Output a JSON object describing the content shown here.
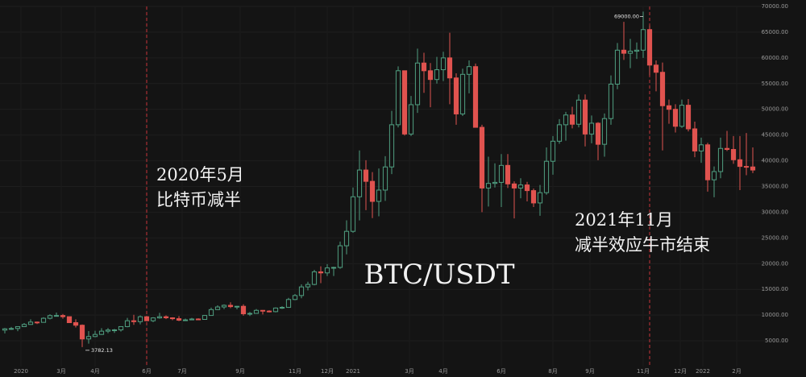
{
  "chart_data": {
    "type": "candlestick",
    "title": "BTC/USDT",
    "up_color": "#4f9e80",
    "down_color": "#e0534f",
    "grid": true,
    "annotations": [
      {
        "lines": [
          "2020年5月",
          "比特币减半"
        ],
        "candle": 22
      },
      {
        "lines": [
          "2021年11月",
          "减半效应牛市结束"
        ],
        "candle": 100
      }
    ],
    "high_label": {
      "value": 69000,
      "label": "69000.00"
    },
    "low_label": {
      "value": 3782.13,
      "label": "3782.13"
    },
    "ylim": [
      0,
      70000
    ],
    "yticks": [
      {
        "value": 5000,
        "label": "5000.00"
      },
      {
        "value": 10000,
        "label": "10000.00"
      },
      {
        "value": 15000,
        "label": "15000.00"
      },
      {
        "value": 20000,
        "label": "20000.00"
      },
      {
        "value": 25000,
        "label": "25000.00"
      },
      {
        "value": 30000,
        "label": "30000.00"
      },
      {
        "value": 35000,
        "label": "35000.00"
      },
      {
        "value": 40000,
        "label": "40000.00"
      },
      {
        "value": 45000,
        "label": "45000.00"
      },
      {
        "value": 50000,
        "label": "50000.00"
      },
      {
        "value": 55000,
        "label": "55000.00"
      },
      {
        "value": 60000,
        "label": "60000.00"
      },
      {
        "value": 65000,
        "label": "65000.00"
      },
      {
        "value": 70000,
        "label": "70000.00"
      }
    ],
    "xlim": [
      -0.75,
      124.25
    ],
    "xticks": [
      {
        "value": 2.5,
        "label": "2020"
      },
      {
        "value": 8.75,
        "label": "3月"
      },
      {
        "value": 14,
        "label": "4月"
      },
      {
        "value": 22,
        "label": "6月"
      },
      {
        "value": 27.5,
        "label": "7月"
      },
      {
        "value": 36.5,
        "label": "9月"
      },
      {
        "value": 45,
        "label": "11月"
      },
      {
        "value": 50,
        "label": "12月"
      },
      {
        "value": 54,
        "label": "2021"
      },
      {
        "value": 62.75,
        "label": "3月"
      },
      {
        "value": 68,
        "label": "4月"
      },
      {
        "value": 77,
        "label": "6月"
      },
      {
        "value": 85,
        "label": "8月"
      },
      {
        "value": 90.75,
        "label": "9月"
      },
      {
        "value": 99,
        "label": "11月"
      },
      {
        "value": 104.75,
        "label": "12月"
      },
      {
        "value": 108.25,
        "label": "2022"
      },
      {
        "value": 113.5,
        "label": "2月"
      }
    ],
    "candles": [
      [
        7080,
        7500,
        6440,
        7330
      ],
      [
        7330,
        7700,
        7130,
        7390
      ],
      [
        7390,
        7500,
        6870,
        7760
      ],
      [
        7760,
        8460,
        7670,
        8180
      ],
      [
        8180,
        9190,
        8130,
        8640
      ],
      [
        8640,
        8750,
        8270,
        8590
      ],
      [
        8590,
        9570,
        8570,
        9380
      ],
      [
        9380,
        10160,
        9170,
        9900
      ],
      [
        9900,
        10500,
        9730,
        9920
      ],
      [
        9920,
        10220,
        9300,
        9690
      ],
      [
        9690,
        9700,
        8450,
        8530
      ],
      [
        8530,
        9190,
        7600,
        8030
      ],
      [
        8030,
        8180,
        3782.13,
        5360
      ],
      [
        5360,
        6900,
        4440,
        5830
      ],
      [
        5830,
        6950,
        5700,
        6240
      ],
      [
        6240,
        7460,
        6150,
        6870
      ],
      [
        6870,
        7470,
        6470,
        7100
      ],
      [
        7100,
        7300,
        6540,
        7130
      ],
      [
        7130,
        7800,
        6800,
        7760
      ],
      [
        7760,
        9460,
        7640,
        8900
      ],
      [
        8900,
        10070,
        8100,
        8720
      ],
      [
        8720,
        9950,
        8200,
        9680
      ],
      [
        9680,
        9850,
        8820,
        8900
      ],
      [
        8900,
        9590,
        8630,
        9450
      ],
      [
        9450,
        10430,
        9290,
        9680
      ],
      [
        9680,
        9950,
        9220,
        9470
      ],
      [
        9470,
        9580,
        9000,
        9300
      ],
      [
        9300,
        9800,
        8830,
        9010
      ],
      [
        9010,
        9320,
        8900,
        9070
      ],
      [
        9070,
        9460,
        9040,
        9240
      ],
      [
        9240,
        9370,
        9000,
        9160
      ],
      [
        9160,
        10000,
        9130,
        9930
      ],
      [
        9930,
        11450,
        9880,
        11070
      ],
      [
        11070,
        11900,
        11000,
        11580
      ],
      [
        11580,
        12080,
        11150,
        11900
      ],
      [
        11900,
        12480,
        11350,
        11650
      ],
      [
        11650,
        11790,
        11120,
        11710
      ],
      [
        11710,
        12090,
        9880,
        10250
      ],
      [
        10250,
        10600,
        9820,
        10330
      ],
      [
        10330,
        11180,
        10260,
        10920
      ],
      [
        10920,
        10990,
        10130,
        10780
      ],
      [
        10780,
        10950,
        10520,
        10670
      ],
      [
        10670,
        11490,
        10530,
        11370
      ],
      [
        11370,
        11720,
        11200,
        11500
      ],
      [
        11500,
        13350,
        11420,
        13030
      ],
      [
        13030,
        14100,
        12900,
        13800
      ],
      [
        13800,
        15970,
        13280,
        15480
      ],
      [
        15480,
        16480,
        14800,
        15960
      ],
      [
        15960,
        18800,
        15800,
        18410
      ],
      [
        18410,
        19480,
        16200,
        18200
      ],
      [
        18200,
        19900,
        17600,
        19170
      ],
      [
        19170,
        19400,
        17600,
        19270
      ],
      [
        19270,
        24300,
        19000,
        23480
      ],
      [
        23480,
        28420,
        21800,
        26280
      ],
      [
        26280,
        34800,
        26000,
        33000
      ],
      [
        33000,
        42000,
        28400,
        38200
      ],
      [
        38200,
        40100,
        30400,
        36000
      ],
      [
        36000,
        37800,
        28850,
        32100
      ],
      [
        32100,
        38500,
        29200,
        34300
      ],
      [
        34300,
        40900,
        32200,
        38800
      ],
      [
        38800,
        49700,
        37400,
        47000
      ],
      [
        47000,
        58350,
        46500,
        57500
      ],
      [
        57500,
        57500,
        44900,
        45200
      ],
      [
        45200,
        52600,
        44800,
        50900
      ],
      [
        50900,
        61800,
        49300,
        59000
      ],
      [
        59000,
        61000,
        53200,
        57500
      ],
      [
        57500,
        59000,
        50400,
        55800
      ],
      [
        55800,
        60200,
        55000,
        57700
      ],
      [
        57700,
        61200,
        55500,
        60000
      ],
      [
        60000,
        64900,
        51000,
        56100
      ],
      [
        56100,
        57000,
        47000,
        49100
      ],
      [
        49100,
        57900,
        48700,
        56800
      ],
      [
        56800,
        59500,
        53100,
        58300
      ],
      [
        58300,
        58900,
        46500,
        46500
      ],
      [
        46500,
        47000,
        30000,
        34700
      ],
      [
        34700,
        40800,
        31100,
        35600
      ],
      [
        35600,
        39500,
        34800,
        35800
      ],
      [
        35800,
        41300,
        31000,
        39100
      ],
      [
        39100,
        41300,
        34700,
        35500
      ],
      [
        35500,
        36000,
        28800,
        34700
      ],
      [
        34700,
        36600,
        32700,
        35300
      ],
      [
        35300,
        35900,
        32100,
        34200
      ],
      [
        34200,
        34600,
        31000,
        31800
      ],
      [
        31800,
        35300,
        29300,
        33800
      ],
      [
        33800,
        42600,
        33400,
        39900
      ],
      [
        39900,
        44800,
        37300,
        43800
      ],
      [
        43800,
        48100,
        43300,
        47000
      ],
      [
        47000,
        49500,
        43900,
        48900
      ],
      [
        48900,
        50500,
        46300,
        47100
      ],
      [
        47100,
        52900,
        46500,
        51800
      ],
      [
        51800,
        52900,
        42800,
        45200
      ],
      [
        45200,
        48800,
        43400,
        47300
      ],
      [
        47300,
        47500,
        40100,
        43200
      ],
      [
        43200,
        49200,
        40800,
        48200
      ],
      [
        48200,
        56600,
        47000,
        54900
      ],
      [
        54900,
        62900,
        53900,
        61500
      ],
      [
        61500,
        67000,
        59600,
        60900
      ],
      [
        60900,
        63700,
        58000,
        61300
      ],
      [
        61300,
        63000,
        59800,
        61500
      ],
      [
        61500,
        69000,
        60000,
        65500
      ],
      [
        65500,
        66300,
        56600,
        58600
      ],
      [
        58600,
        59500,
        53500,
        57200
      ],
      [
        57200,
        59100,
        42000,
        50700
      ],
      [
        50700,
        51900,
        47200,
        50000
      ],
      [
        50000,
        51000,
        45500,
        46700
      ],
      [
        46700,
        51900,
        46400,
        50800
      ],
      [
        50800,
        52000,
        45700,
        46200
      ],
      [
        46200,
        47600,
        40700,
        41900
      ],
      [
        41900,
        44500,
        39600,
        43100
      ],
      [
        43100,
        43500,
        34000,
        36300
      ],
      [
        36300,
        38900,
        32900,
        37900
      ],
      [
        37900,
        44500,
        36600,
        42400
      ],
      [
        42400,
        45800,
        41900,
        42200
      ],
      [
        42200,
        44800,
        39400,
        40200
      ],
      [
        40200,
        44800,
        34300,
        38900
      ],
      [
        38900,
        45400,
        37200,
        38800
      ],
      [
        38800,
        42600,
        37600,
        38200
      ]
    ]
  }
}
